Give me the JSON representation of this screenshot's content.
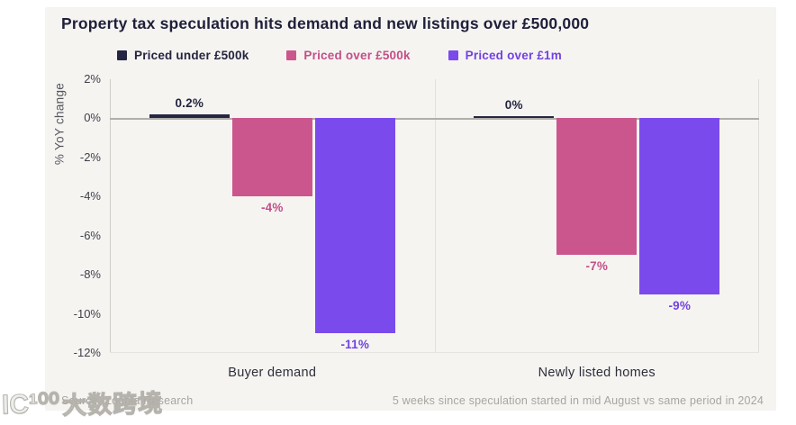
{
  "title": "Property tax speculation hits demand and new listings over £500,000",
  "legend": {
    "items": [
      {
        "label": "Priced under £500k",
        "swatch": "#262642",
        "text_color": "#25253f"
      },
      {
        "label": "Priced over £500k",
        "swatch": "#cb568e",
        "text_color": "#c34f88"
      },
      {
        "label": "Priced over £1m",
        "swatch": "#7b4aec",
        "text_color": "#7341e2"
      }
    ]
  },
  "chart_data": {
    "type": "bar",
    "title": "Property tax speculation hits demand and new listings over £500,000",
    "categories": [
      "Buyer demand",
      "Newly listed homes"
    ],
    "series": [
      {
        "name": "Priced under £500k",
        "color": "#262642",
        "label_color": "#25253f",
        "values": [
          0.2,
          0
        ],
        "value_labels": [
          "0.2%",
          "0%"
        ]
      },
      {
        "name": "Priced over £500k",
        "color": "#cb568e",
        "label_color": "#c34f88",
        "values": [
          -4,
          -7
        ],
        "value_labels": [
          "-4%",
          "-7%"
        ]
      },
      {
        "name": "Priced over £1m",
        "color": "#7b4aec",
        "label_color": "#7341e2",
        "values": [
          -11,
          -9
        ],
        "value_labels": [
          "-11%",
          "-9%"
        ]
      }
    ],
    "xlabel": "",
    "ylabel": "% YoY change",
    "ylim": [
      -12,
      2
    ],
    "yticks": [
      {
        "value": 2,
        "label": "2%"
      },
      {
        "value": 0,
        "label": "0%"
      },
      {
        "value": -2,
        "label": "-2%"
      },
      {
        "value": -4,
        "label": "-4%"
      },
      {
        "value": -6,
        "label": "-6%"
      },
      {
        "value": -8,
        "label": "-8%"
      },
      {
        "value": -10,
        "label": "-10%"
      },
      {
        "value": -12,
        "label": "-12%"
      }
    ],
    "grid": "zero-line-only",
    "legend_position": "top"
  },
  "footer": {
    "source": "Source: Zoopla Research",
    "note": "5 weeks since speculation started in mid August vs same period in 2024"
  },
  "watermark": {
    "glyph": "IC¹⁰⁰",
    "text": "大数跨境"
  },
  "colors": {
    "page_bg": "#ffffff",
    "card_bg": "#f5f4f1",
    "zero_line": "#b0aeaa",
    "axis_line": "#cfcdc8",
    "divider": "#e2e0db",
    "edge_line": "#e0ded9",
    "bottom_line": "#e6e4df",
    "tick_text": "#3f3f4a",
    "ylabel_text": "#55555e",
    "category_text": "#2e2e3a",
    "footer_text": "#a8a5a0"
  }
}
